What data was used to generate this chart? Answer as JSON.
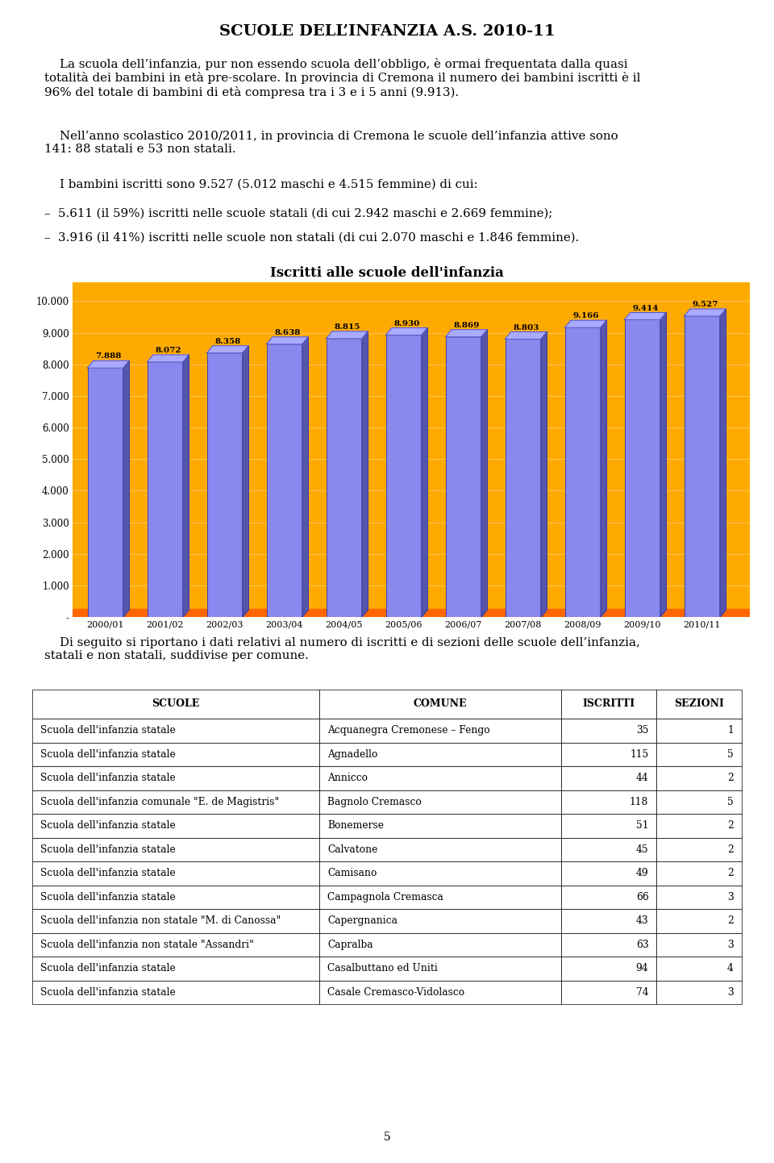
{
  "title": "SCUOLE DELL’INFANZIA A.S. 2010-11",
  "p1": "    La scuola dell’infanzia, pur non essendo scuola dell’obbligo, è ormai frequentata dalla quasi\ntotalità dei bambini in età pre-scolare. In provincia di Cremona il numero dei bambini iscritti è il\n96% del totale di bambini di età compresa tra i 3 e i 5 anni (9.913).",
  "p2": "    Nell’anno scolastico 2010/2011, in provincia di Cremona le scuole dell’infanzia attive sono\n141: 88 statali e 53 non statali.",
  "p2_bold": "scuole dell’infanzia",
  "p3": "    I bambini iscritti sono 9.527 (5.012 maschi e 4.515 femmine) di cui:",
  "b1": "–  5.611 (il 59%) iscritti nelle scuole statali (di cui 2.942 maschi e 2.669 femmine);",
  "b2": "–  3.916 (il 41%) iscritti nelle scuole non statali (di cui 2.070 maschi e 1.846 femmine).",
  "chart_title": "Iscritti alle scuole dell'infanzia",
  "years": [
    "2000/01",
    "2001/02",
    "2002/03",
    "2003/04",
    "2004/05",
    "2005/06",
    "2006/07",
    "2007/08",
    "2008/09",
    "2009/10",
    "2010/11"
  ],
  "values": [
    7888,
    8072,
    8358,
    8638,
    8815,
    8930,
    8869,
    8803,
    9166,
    9414,
    9527
  ],
  "bar_labels": [
    "7.888",
    "8.072",
    "8.358",
    "8.638",
    "8.815",
    "8.930",
    "8.869",
    "8.803",
    "9.166",
    "9.414",
    "9.527"
  ],
  "bar_color": "#8888EE",
  "bar_dark": "#5555AA",
  "bar_top": "#AAAAFF",
  "bar_edge": "#3333AA",
  "bg_color": "#FFAA00",
  "orange_color": "#FF6600",
  "ytick_vals": [
    0,
    1000,
    2000,
    3000,
    4000,
    5000,
    6000,
    7000,
    8000,
    9000,
    10000
  ],
  "ytick_labels": [
    "-",
    "1.000",
    "2.000",
    "3.000",
    "4.000",
    "5.000",
    "6.000",
    "7.000",
    "8.000",
    "9.000",
    "10.000"
  ],
  "para_text": "    Di seguito si riportano i dati relativi al numero di iscritti e di sezioni delle scuole dell’infanzia,\nstatali e non statali, suddivise per comune.",
  "table_headers": [
    "SCUOLE",
    "COMUNE",
    "ISCRITTI",
    "SEZIONI"
  ],
  "table_data": [
    [
      "Scuola dell'infanzia statale",
      "Acquanegra Cremonese – Fengo",
      "35",
      "1"
    ],
    [
      "Scuola dell'infanzia statale",
      "Agnadello",
      "115",
      "5"
    ],
    [
      "Scuola dell'infanzia statale",
      "Annicco",
      "44",
      "2"
    ],
    [
      "Scuola dell'infanzia comunale \"E. de Magistris\"",
      "Bagnolo Cremasco",
      "118",
      "5"
    ],
    [
      "Scuola dell'infanzia statale",
      "Bonemerse",
      "51",
      "2"
    ],
    [
      "Scuola dell'infanzia statale",
      "Calvatone",
      "45",
      "2"
    ],
    [
      "Scuola dell'infanzia statale",
      "Camisano",
      "49",
      "2"
    ],
    [
      "Scuola dell'infanzia statale",
      "Campagnola Cremasca",
      "66",
      "3"
    ],
    [
      "Scuola dell'infanzia non statale \"M. di Canossa\"",
      "Capergnanica",
      "43",
      "2"
    ],
    [
      "Scuola dell'infanzia non statale \"Assandri\"",
      "Capralba",
      "63",
      "3"
    ],
    [
      "Scuola dell'infanzia statale",
      "Casalbuttano ed Uniti",
      "94",
      "4"
    ],
    [
      "Scuola dell'infanzia statale",
      "Casale Cremasco-Vidolasco",
      "74",
      "3"
    ]
  ],
  "page_num": "5"
}
